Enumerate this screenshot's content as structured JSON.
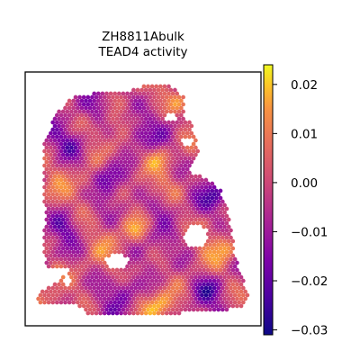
{
  "chart_data": {
    "type": "heatmap",
    "subtype": "spatial-hexbin",
    "title": "ZH8811Abulk",
    "subtitle": "TEAD4 activity",
    "colormap": "plasma",
    "colorbar": {
      "vmin": -0.031,
      "vmax": 0.024,
      "ticks": [
        0.02,
        0.01,
        0.0,
        -0.01,
        -0.02,
        -0.03
      ],
      "tick_labels": [
        "0.02",
        "0.01",
        "0.00",
        "−0.01",
        "−0.02",
        "−0.03"
      ],
      "position": "right"
    },
    "xlabel": "",
    "ylabel": "",
    "axes_ticks": false,
    "grid": false,
    "tissue_description_notes": "",
    "summary": {
      "predominant_range": [
        -0.005,
        0.012
      ],
      "low_regions": [
        "upper-left",
        "center",
        "lower-middle",
        "right edge"
      ],
      "high_regions": [
        "bottom-center",
        "right edge lower",
        "upper-middle"
      ]
    }
  }
}
